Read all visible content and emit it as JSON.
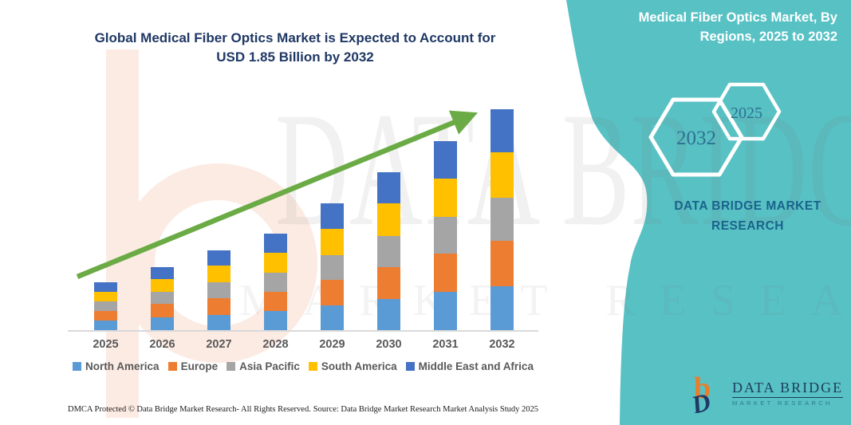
{
  "title": {
    "line1": "Global Medical Fiber Optics Market is Expected to Account for",
    "line2": "USD 1.85 Billion by 2032"
  },
  "side_panel": {
    "title_line1": "Medical Fiber Optics Market, By",
    "title_line2": "Regions, 2025 to 2032",
    "hex_large": "2032",
    "hex_small": "2025",
    "brand_line1": "DATA BRIDGE MARKET",
    "brand_line2": "RESEARCH",
    "panel_color": "#58c1c4"
  },
  "watermark": {
    "big": "DATA BRIDGE",
    "small": "MARKET RESEARCH"
  },
  "logo": {
    "name": "DATA BRIDGE",
    "tagline": "MARKET RESEARCH",
    "orange": "#e87e2b",
    "navy": "#1f3864"
  },
  "footer": {
    "left": "DMCA Protected © Data Bridge Market Research-  All Rights Reserved.",
    "right": "Source: Data Bridge Market Research  Market Analysis Study 2025"
  },
  "chart_data": {
    "type": "bar",
    "stacked": true,
    "title": "Global Medical Fiber Optics Market is Expected to Account for USD 1.85 Billion by 2032",
    "unit": "USD Billion",
    "categories": [
      "2025",
      "2026",
      "2027",
      "2028",
      "2029",
      "2030",
      "2031",
      "2032"
    ],
    "series": [
      {
        "name": "North America",
        "color": "#5b9bd5",
        "values": [
          0.08,
          0.11,
          0.13,
          0.16,
          0.21,
          0.26,
          0.32,
          0.37
        ]
      },
      {
        "name": "Europe",
        "color": "#ed7d31",
        "values": [
          0.08,
          0.11,
          0.14,
          0.16,
          0.21,
          0.27,
          0.32,
          0.38
        ]
      },
      {
        "name": "Asia Pacific",
        "color": "#a5a5a5",
        "values": [
          0.08,
          0.1,
          0.13,
          0.16,
          0.21,
          0.26,
          0.31,
          0.36
        ]
      },
      {
        "name": "South America",
        "color": "#ffc000",
        "values": [
          0.08,
          0.11,
          0.14,
          0.17,
          0.22,
          0.27,
          0.32,
          0.38
        ]
      },
      {
        "name": "Middle East and Africa",
        "color": "#4472c4",
        "values": [
          0.08,
          0.1,
          0.13,
          0.16,
          0.21,
          0.26,
          0.31,
          0.36
        ]
      }
    ],
    "totals_by_year": [
      0.4,
      0.53,
      0.67,
      0.81,
      1.06,
      1.32,
      1.58,
      1.85
    ],
    "ylim": [
      0,
      2.0
    ],
    "grid": false,
    "legend_position": "bottom",
    "trend_arrow": true,
    "trend_arrow_color": "#6bab45"
  }
}
